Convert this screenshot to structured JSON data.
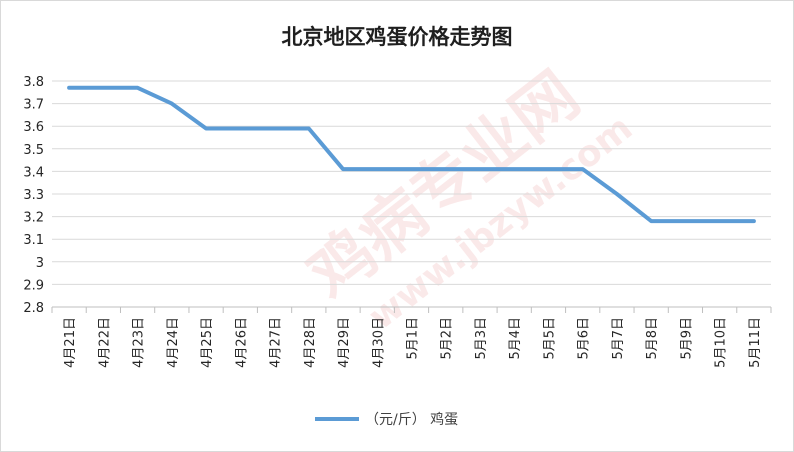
{
  "chart_data": {
    "type": "line",
    "title": "北京地区鸡蛋价格走势图",
    "categories": [
      "4月21日",
      "4月22日",
      "4月23日",
      "4月24日",
      "4月25日",
      "4月26日",
      "4月27日",
      "4月28日",
      "4月29日",
      "4月30日",
      "5月1日",
      "5月2日",
      "5月3日",
      "5月4日",
      "5月5日",
      "5月6日",
      "5月7日",
      "5月8日",
      "5月9日",
      "5月10日",
      "5月11日"
    ],
    "series": [
      {
        "name": "（元/斤） 鸡蛋",
        "color": "#5b9bd5",
        "values": [
          3.77,
          3.77,
          3.77,
          3.7,
          3.59,
          3.59,
          3.59,
          3.59,
          3.41,
          3.41,
          3.41,
          3.41,
          3.41,
          3.41,
          3.41,
          3.41,
          3.3,
          3.18,
          3.18,
          3.18,
          3.18
        ]
      }
    ],
    "ylim": [
      2.8,
      3.8
    ],
    "yticks": [
      "2.8",
      "2.9",
      "3",
      "3.1",
      "3.2",
      "3.3",
      "3.4",
      "3.5",
      "3.6",
      "3.7",
      "3.8"
    ],
    "grid": true,
    "legend_position": "bottom"
  },
  "watermark": {
    "main": "鸡病专业网",
    "url": "www.jbzyw.com"
  }
}
